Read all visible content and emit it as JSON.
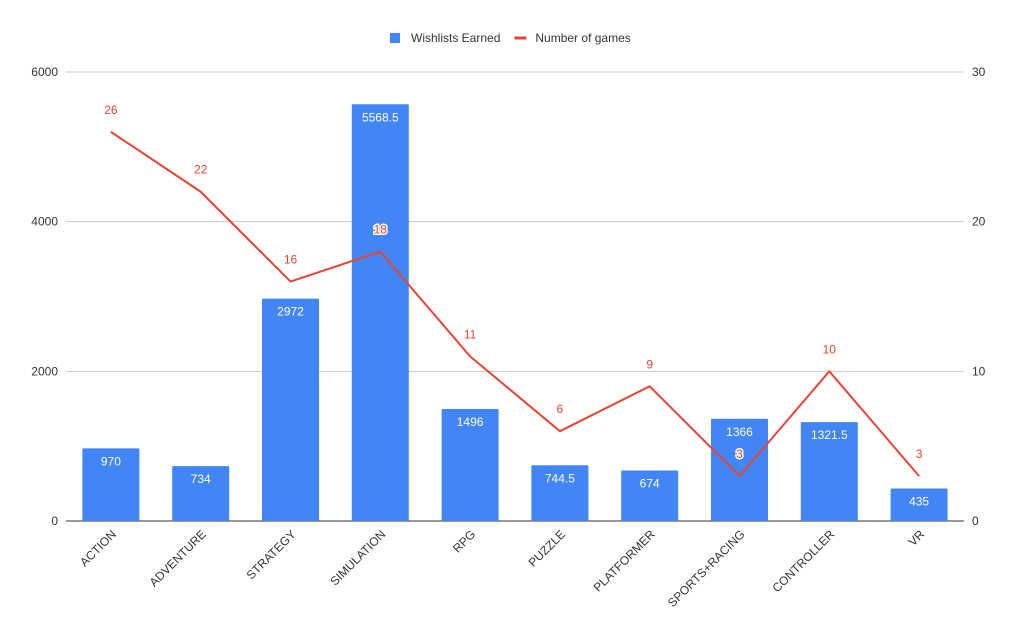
{
  "chart_data": {
    "type": "bar",
    "categories": [
      "ACTION",
      "ADVENTURE",
      "STRATEGY",
      "SIMULATION",
      "RPG",
      "PUZZLE",
      "PLATFORMER",
      "SPORTS+RACING",
      "CONTROLLER",
      "VR"
    ],
    "series": [
      {
        "name": "Wishlists Earned",
        "type": "bar",
        "axis": "left",
        "color": "#4285f4",
        "values": [
          970,
          734,
          2972,
          5568.5,
          1496,
          744.5,
          674,
          1366,
          1321.5,
          435
        ],
        "labels": [
          "970",
          "734",
          "2972",
          "5568.5",
          "1496",
          "744.5",
          "674",
          "1366",
          "1321.5",
          "435"
        ]
      },
      {
        "name": "Number of games",
        "type": "line",
        "axis": "right",
        "color": "#ea4335",
        "values": [
          26,
          22,
          16,
          18,
          11,
          6,
          9,
          3,
          10,
          3
        ],
        "labels": [
          "26",
          "22",
          "16",
          "18",
          "11",
          "6",
          "9",
          "3",
          "10",
          "3"
        ]
      }
    ],
    "y_left": {
      "min": 0,
      "max": 6000,
      "ticks": [
        "0",
        "2000",
        "4000",
        "6000"
      ]
    },
    "y_right": {
      "min": 0,
      "max": 30,
      "ticks": [
        "0",
        "10",
        "20",
        "30"
      ]
    },
    "grid": true,
    "legend_position": "top-center"
  }
}
